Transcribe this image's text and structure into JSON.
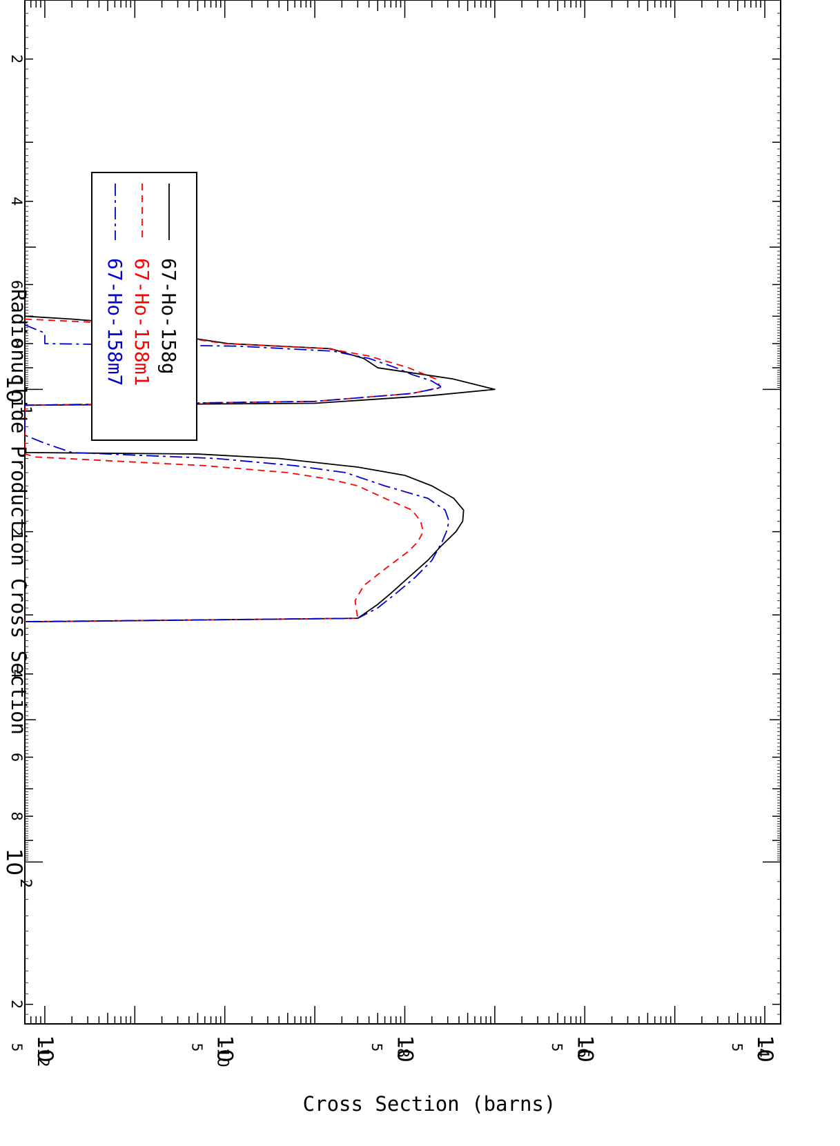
{
  "chart_data": {
    "type": "line",
    "title": "Radionuclide Production Cross Section",
    "ylabel": "Cross Section (barns)",
    "xlabel": "",
    "x_scale": "log",
    "y_scale": "log",
    "xlim": [
      1.5,
      220
    ],
    "ylim": [
      6e-13,
      0.00015
    ],
    "x_major_ticks": [
      {
        "value": 10,
        "label": "10",
        "exp": "1"
      },
      {
        "value": 100,
        "label": "10",
        "exp": "2"
      }
    ],
    "x_minor_labels": [
      {
        "value": 2,
        "label": "2"
      },
      {
        "value": 4,
        "label": "4"
      },
      {
        "value": 6,
        "label": "6"
      },
      {
        "value": 8,
        "label": "8"
      },
      {
        "value": 20,
        "label": "2"
      },
      {
        "value": 40,
        "label": "4"
      },
      {
        "value": 60,
        "label": "6"
      },
      {
        "value": 80,
        "label": "8"
      },
      {
        "value": 200,
        "label": "2"
      }
    ],
    "y_major_ticks": [
      {
        "value": 0.0001,
        "label": "10",
        "exp": "-4"
      },
      {
        "value": 1e-06,
        "label": "10",
        "exp": "-6"
      },
      {
        "value": 1e-08,
        "label": "10",
        "exp": "-8"
      },
      {
        "value": 1e-10,
        "label": "10",
        "exp": "-10"
      },
      {
        "value": 1e-12,
        "label": "10",
        "exp": "-12"
      }
    ],
    "y_minor_labels": [
      {
        "value": 5e-05,
        "label": "5"
      },
      {
        "value": 5e-07,
        "label": "5"
      },
      {
        "value": 5e-09,
        "label": "5"
      },
      {
        "value": 5e-11,
        "label": "5"
      },
      {
        "value": 5e-13,
        "label": "5"
      }
    ],
    "legend_position": "bottom-left",
    "series": [
      {
        "name": "67-Ho-158g",
        "color": "#000000",
        "dash": "solid",
        "points": [
          [
            7.0,
            6e-13
          ],
          [
            7.1,
            2e-12
          ],
          [
            7.2,
            5e-12
          ],
          [
            7.4,
            1.5e-11
          ],
          [
            7.6,
            3.6e-11
          ],
          [
            7.8,
            4.5e-11
          ],
          [
            8.0,
            1.1e-10
          ],
          [
            8.2,
            1.5e-09
          ],
          [
            8.6,
            3.5e-09
          ],
          [
            9.0,
            5e-09
          ],
          [
            9.5,
            3.4e-08
          ],
          [
            10.0,
            1e-07
          ],
          [
            10.3,
            2e-08
          ],
          [
            10.7,
            1e-09
          ],
          [
            10.8,
            6e-13
          ],
          [
            10.8,
            6e-13
          ],
          [
            13.6,
            6e-13
          ],
          [
            13.7,
            5e-11
          ],
          [
            14.0,
            4e-10
          ],
          [
            14.6,
            3e-09
          ],
          [
            15.2,
            1e-08
          ],
          [
            16.0,
            2e-08
          ],
          [
            17.0,
            3.5e-08
          ],
          [
            18.0,
            4.5e-08
          ],
          [
            19.0,
            4.4e-08
          ],
          [
            20.0,
            3.7e-08
          ],
          [
            21.5,
            2.5e-08
          ],
          [
            23.0,
            1.8e-08
          ],
          [
            25.0,
            1.1e-08
          ],
          [
            27.0,
            7e-09
          ],
          [
            28.5,
            5e-09
          ],
          [
            30.5,
            3e-09
          ],
          [
            31.0,
            1e-12
          ],
          [
            31.0,
            6e-13
          ]
        ]
      },
      {
        "name": "67-Ho-158m1",
        "color": "#ff0000",
        "dash": "10,7",
        "points": [
          [
            7.1,
            6e-13
          ],
          [
            7.2,
            3e-12
          ],
          [
            7.5,
            1.3e-11
          ],
          [
            7.8,
            4e-11
          ],
          [
            8.0,
            1e-10
          ],
          [
            8.2,
            1.4e-09
          ],
          [
            8.5,
            4e-09
          ],
          [
            9.0,
            1.1e-08
          ],
          [
            9.5,
            2.2e-08
          ],
          [
            9.9,
            2.5e-08
          ],
          [
            10.2,
            1.2e-08
          ],
          [
            10.6,
            1e-09
          ],
          [
            10.8,
            6e-13
          ],
          [
            13.7,
            6e-13
          ],
          [
            13.9,
            8e-13
          ],
          [
            14.5,
            6e-11
          ],
          [
            15.0,
            5e-10
          ],
          [
            15.5,
            1.5e-09
          ],
          [
            16.0,
            3e-09
          ],
          [
            17.0,
            6e-09
          ],
          [
            18.0,
            1.2e-08
          ],
          [
            19.0,
            1.5e-08
          ],
          [
            20.0,
            1.6e-08
          ],
          [
            21.0,
            1.4e-08
          ],
          [
            22.0,
            1.1e-08
          ],
          [
            24.0,
            6e-09
          ],
          [
            26.0,
            3.5e-09
          ],
          [
            28.0,
            2.8e-09
          ],
          [
            30.5,
            3e-09
          ],
          [
            31.0,
            6e-13
          ]
        ]
      },
      {
        "name": "67-Ho-158m7",
        "color": "#0000cc",
        "dash": "18,6,4,6",
        "points": [
          [
            7.3,
            6e-13
          ],
          [
            7.6,
            1e-12
          ],
          [
            8.0,
            1e-12
          ],
          [
            8.1,
            1.4e-10
          ],
          [
            8.3,
            1.6e-09
          ],
          [
            8.6,
            4e-09
          ],
          [
            9.0,
            8e-09
          ],
          [
            9.3,
            1.2e-08
          ],
          [
            9.6,
            2e-08
          ],
          [
            9.9,
            2.6e-08
          ],
          [
            10.2,
            1.2e-08
          ],
          [
            10.6,
            1e-09
          ],
          [
            10.8,
            6e-13
          ],
          [
            12.5,
            6e-13
          ],
          [
            13.0,
            1e-12
          ],
          [
            13.6,
            2e-12
          ],
          [
            14.0,
            8e-11
          ],
          [
            14.5,
            6e-10
          ],
          [
            15.0,
            2.2e-09
          ],
          [
            16.0,
            6e-09
          ],
          [
            17.0,
            1.8e-08
          ],
          [
            18.0,
            2.8e-08
          ],
          [
            19.0,
            3.1e-08
          ],
          [
            20.0,
            2.9e-08
          ],
          [
            21.0,
            2.6e-08
          ],
          [
            23.0,
            2e-08
          ],
          [
            25.0,
            1.3e-08
          ],
          [
            27.0,
            8e-09
          ],
          [
            29.0,
            5e-09
          ],
          [
            30.5,
            3e-09
          ],
          [
            31.0,
            6e-13
          ]
        ]
      }
    ]
  }
}
